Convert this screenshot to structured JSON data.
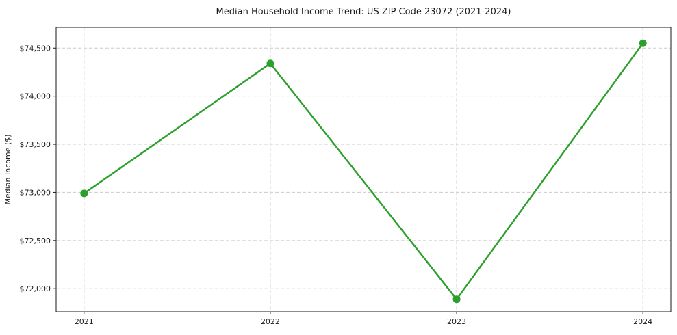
{
  "chart_data": {
    "type": "line",
    "title": "Median Household Income Trend: US ZIP Code 23072 (2021-2024)",
    "xlabel": "",
    "ylabel": "Median Income ($)",
    "x": [
      2021,
      2022,
      2023,
      2024
    ],
    "x_tick_labels": [
      "2021",
      "2022",
      "2023",
      "2024"
    ],
    "series": [
      {
        "name": "Median Household Income",
        "values": [
          72990,
          74340,
          71890,
          74550
        ],
        "color": "#2ca02c",
        "marker": "circle"
      }
    ],
    "y_tick_values": [
      72000,
      72500,
      73000,
      73500,
      74000,
      74500
    ],
    "y_tick_labels": [
      "$72,000",
      "$72,500",
      "$73,000",
      "$73,500",
      "$74,000",
      "$74,500"
    ],
    "xlim": [
      2020.85,
      2024.15
    ],
    "ylim": [
      71760,
      74715
    ],
    "grid": true,
    "grid_color": "#cccccc",
    "legend": false,
    "background_color": "#ffffff",
    "frame_color": "#1a1a1a",
    "text_color": "#1a1a1a"
  }
}
